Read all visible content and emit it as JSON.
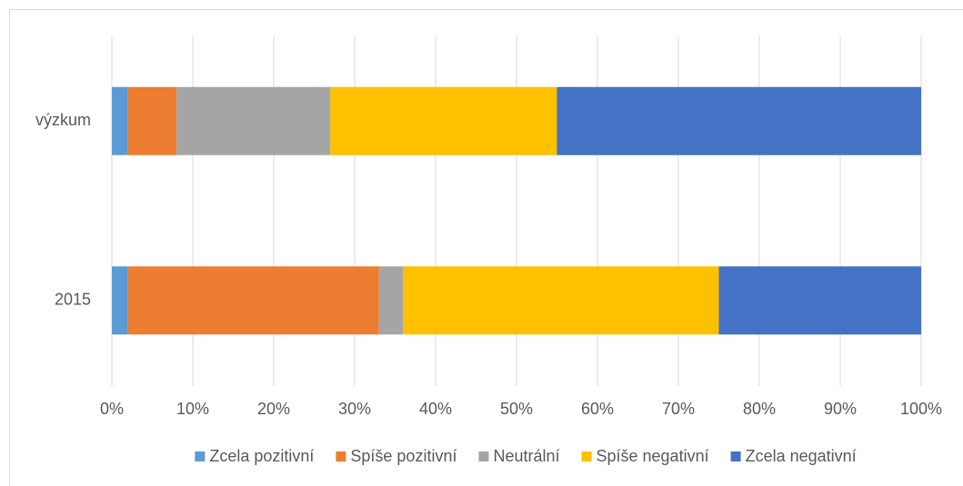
{
  "chart_data": {
    "type": "stacked_hbar",
    "categories": [
      "výzkum",
      "2015"
    ],
    "series": [
      {
        "name": "Zcela pozitivní",
        "color": "#5b9bd5",
        "values": [
          2,
          2
        ]
      },
      {
        "name": "Spíše pozitivní",
        "color": "#ed7d31",
        "values": [
          6,
          31
        ]
      },
      {
        "name": "Neutrální",
        "color": "#a5a5a5",
        "values": [
          19,
          3
        ]
      },
      {
        "name": "Spíše negativní",
        "color": "#ffc000",
        "values": [
          28,
          39
        ]
      },
      {
        "name": "Zcela negativní",
        "color": "#4472c4",
        "values": [
          45,
          25
        ]
      }
    ],
    "xlim": [
      0,
      100
    ],
    "xticks": [
      {
        "value": 0,
        "label": "0%"
      },
      {
        "value": 10,
        "label": "10%"
      },
      {
        "value": 20,
        "label": "20%"
      },
      {
        "value": 30,
        "label": "30%"
      },
      {
        "value": 40,
        "label": "40%"
      },
      {
        "value": 50,
        "label": "50%"
      },
      {
        "value": 60,
        "label": "60%"
      },
      {
        "value": 70,
        "label": "70%"
      },
      {
        "value": 80,
        "label": "80%"
      },
      {
        "value": 90,
        "label": "90%"
      },
      {
        "value": 100,
        "label": "100%"
      }
    ],
    "grid": true,
    "legend": "bottom"
  }
}
